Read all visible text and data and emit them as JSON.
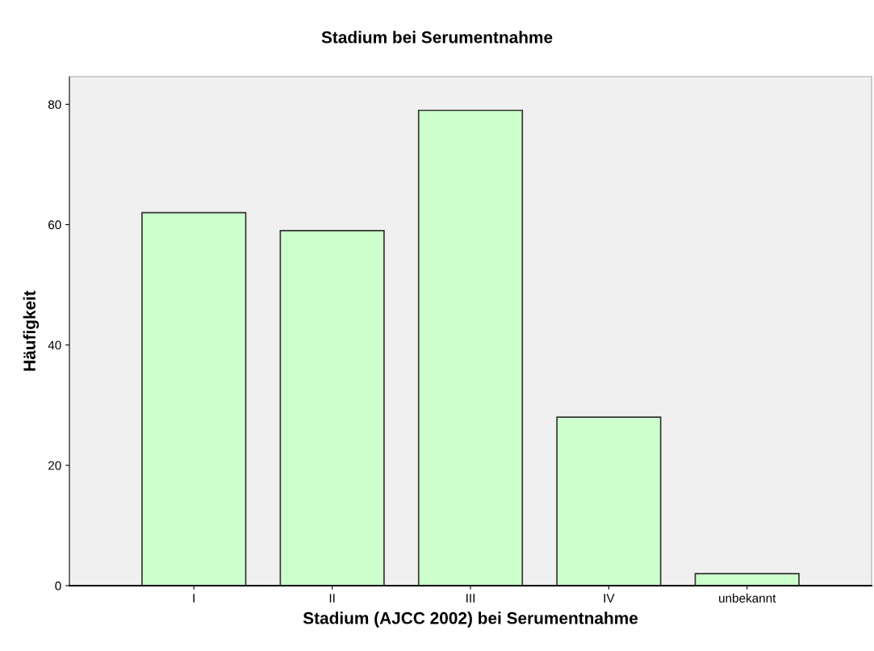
{
  "chart_data": {
    "type": "bar",
    "title": "Stadium bei Serumentnahme",
    "xlabel": "Stadium (AJCC 2002) bei Serumentnahme",
    "ylabel": "Häufigkeit",
    "categories": [
      "I",
      "II",
      "III",
      "IV",
      "unbekannt"
    ],
    "values": [
      62,
      59,
      79,
      28,
      2
    ],
    "color": "#ccffcc",
    "ylim": [
      0,
      84.6
    ],
    "yticks": [
      0,
      20,
      40,
      60,
      80
    ],
    "grid": false,
    "legend": false
  }
}
